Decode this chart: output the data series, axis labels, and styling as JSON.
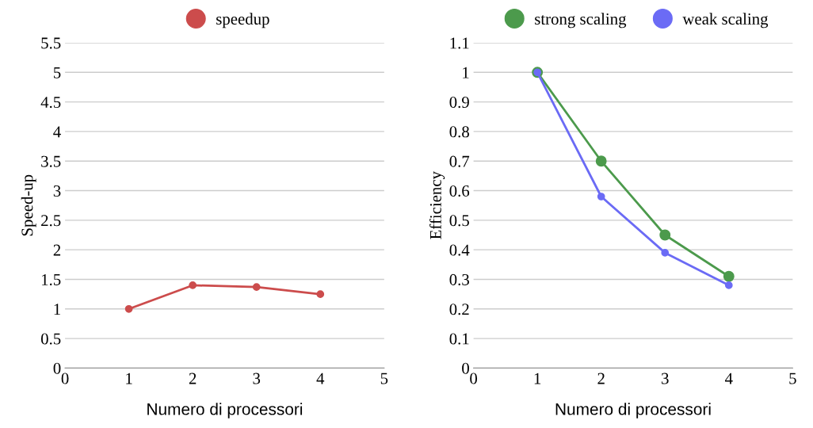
{
  "chart_data": [
    {
      "type": "line",
      "xlabel": "Numero di processori",
      "ylabel": "Speed-up",
      "x": [
        1,
        2,
        3,
        4
      ],
      "series": [
        {
          "name": "speedup",
          "color": "#cc4c4c",
          "values": [
            1.0,
            1.4,
            1.37,
            1.25
          ]
        }
      ],
      "xlim": [
        0,
        5
      ],
      "xticks": [
        0,
        1,
        2,
        3,
        4,
        5
      ],
      "ylim": [
        0,
        5.5
      ],
      "yticks": [
        0,
        0.5,
        1,
        1.5,
        2,
        2.5,
        3,
        3.5,
        4,
        4.5,
        5,
        5.5
      ],
      "grid": "y",
      "legend": "top",
      "marker": "circle",
      "line_style": "solid"
    },
    {
      "type": "line",
      "xlabel": "Numero di processori",
      "ylabel": "Efficiency",
      "x": [
        1,
        2,
        3,
        4
      ],
      "series": [
        {
          "name": "strong scaling",
          "color": "#4c9a4c",
          "values": [
            1.0,
            0.7,
            0.45,
            0.31
          ]
        },
        {
          "name": "weak scaling",
          "color": "#6b6bf5",
          "values": [
            1.0,
            0.58,
            0.39,
            0.28
          ]
        }
      ],
      "xlim": [
        0,
        5
      ],
      "xticks": [
        0,
        1,
        2,
        3,
        4,
        5
      ],
      "ylim": [
        0,
        1.1
      ],
      "yticks": [
        0,
        0.1,
        0.2,
        0.3,
        0.4,
        0.5,
        0.6,
        0.7,
        0.8,
        0.9,
        1,
        1.1
      ],
      "grid": "y",
      "legend": "top",
      "marker": "circle",
      "line_style": "solid"
    }
  ]
}
